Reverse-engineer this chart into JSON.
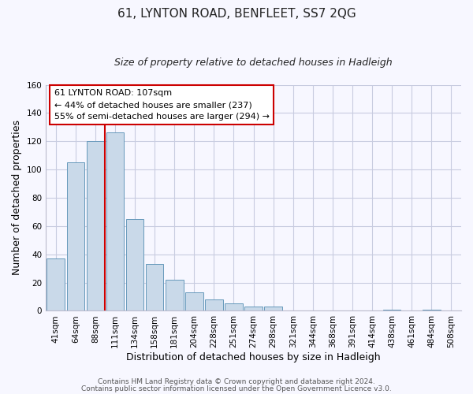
{
  "title": "61, LYNTON ROAD, BENFLEET, SS7 2QG",
  "subtitle": "Size of property relative to detached houses in Hadleigh",
  "xlabel": "Distribution of detached houses by size in Hadleigh",
  "ylabel": "Number of detached properties",
  "bar_labels": [
    "41sqm",
    "64sqm",
    "88sqm",
    "111sqm",
    "134sqm",
    "158sqm",
    "181sqm",
    "204sqm",
    "228sqm",
    "251sqm",
    "274sqm",
    "298sqm",
    "321sqm",
    "344sqm",
    "368sqm",
    "391sqm",
    "414sqm",
    "438sqm",
    "461sqm",
    "484sqm",
    "508sqm"
  ],
  "bar_values": [
    37,
    105,
    120,
    126,
    65,
    33,
    22,
    13,
    8,
    5,
    3,
    3,
    0,
    0,
    0,
    0,
    0,
    1,
    0,
    1,
    0
  ],
  "bar_color": "#c9d9e9",
  "bar_edge_color": "#6699bb",
  "vline_x": 2.5,
  "vline_color": "#cc0000",
  "ylim": [
    0,
    160
  ],
  "yticks": [
    0,
    20,
    40,
    60,
    80,
    100,
    120,
    140,
    160
  ],
  "annotation_title": "61 LYNTON ROAD: 107sqm",
  "annotation_line1": "← 44% of detached houses are smaller (237)",
  "annotation_line2": "55% of semi-detached houses are larger (294) →",
  "footer_line1": "Contains HM Land Registry data © Crown copyright and database right 2024.",
  "footer_line2": "Contains public sector information licensed under the Open Government Licence v3.0.",
  "bg_color": "#f7f7ff",
  "grid_color": "#c8cce0",
  "title_fontsize": 11,
  "subtitle_fontsize": 9,
  "axis_label_fontsize": 9,
  "tick_fontsize": 7.5,
  "annotation_fontsize": 8,
  "footer_fontsize": 6.5
}
